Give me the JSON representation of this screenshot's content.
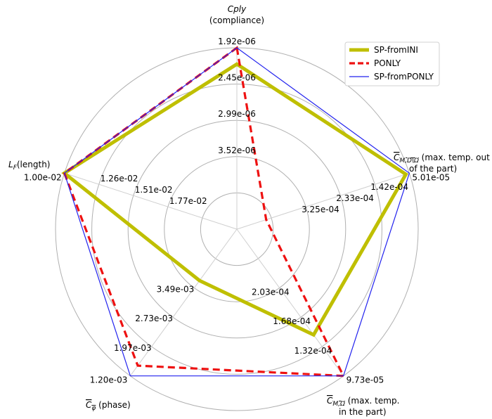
{
  "chart_data": {
    "type": "radar",
    "axes": [
      {
        "label_lines": [
          "Cply",
          "(compliance)"
        ],
        "ticks": [
          "1.92e-06",
          "2.45e-06",
          "2.99e-06",
          "3.52e-06"
        ],
        "outer_value": "1.92e-06"
      },
      {
        "label_lines": [
          "C_M,D\\Ω (max. temp. out",
          "of the part)"
        ],
        "ticks": [
          "5.01e-05",
          "1.42e-04",
          "2.33e-04",
          "3.25e-04"
        ],
        "outer_value": "5.01e-05"
      },
      {
        "label_lines": [
          "C_M,Ω (max. temp.",
          "in the part)"
        ],
        "ticks": [
          "9.73e-05",
          "1.32e-04",
          "1.68e-04",
          "2.03e-04"
        ],
        "outer_value": "9.73e-05"
      },
      {
        "label_lines": [
          "C_φ (phase)"
        ],
        "ticks": [
          "1.20e-03",
          "1.97e-03",
          "2.73e-03",
          "3.49e-03"
        ],
        "outer_value": "1.20e-03"
      },
      {
        "label_lines": [
          "L_F(length)"
        ],
        "ticks": [
          "1.00e-02",
          "1.26e-02",
          "1.51e-02",
          "1.77e-02"
        ],
        "outer_value": "1.00e-02"
      }
    ],
    "series": [
      {
        "name": "SP-fromINI",
        "color": "#bfbf00",
        "style": "solid-thick",
        "values_fraction": [
          0.91,
          0.98,
          0.72,
          0.35,
          1.0
        ]
      },
      {
        "name": "PONLY",
        "color": "#ee1111",
        "style": "dashed",
        "values_fraction": [
          1.0,
          0.17,
          1.0,
          0.93,
          1.0
        ]
      },
      {
        "name": "SP-fromPONLY",
        "color": "#2222ee",
        "style": "solid-thin",
        "values_fraction": [
          1.0,
          1.0,
          1.0,
          1.0,
          1.0
        ]
      }
    ],
    "rings": 5,
    "legend_position": "top-right",
    "grid": true
  }
}
